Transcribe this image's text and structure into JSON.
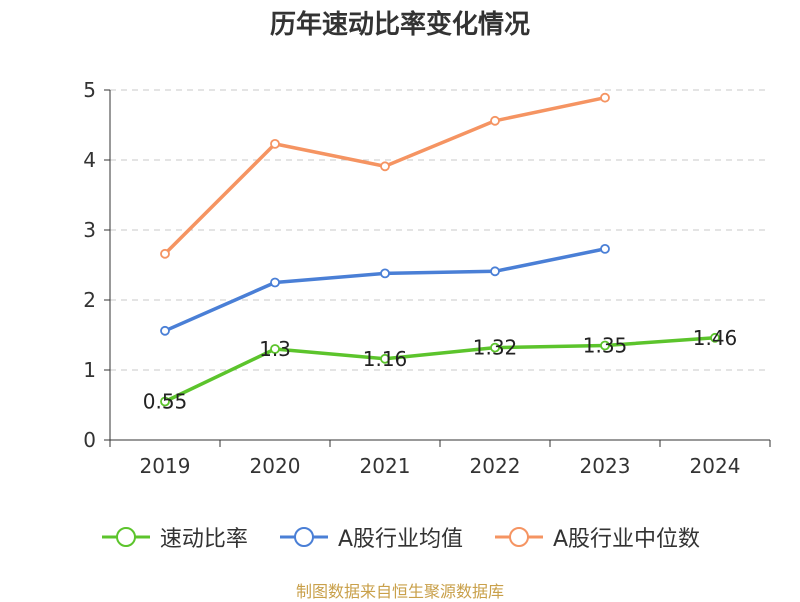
{
  "chart_data": {
    "type": "line",
    "title": "历年速动比率变化情况",
    "categories": [
      "2019",
      "2020",
      "2021",
      "2022",
      "2023",
      "2024"
    ],
    "ylim": [
      0,
      5
    ],
    "yticks": [
      "0",
      "1",
      "2",
      "3",
      "4",
      "5"
    ],
    "grid": "dashed-horizontal",
    "legend_position": "bottom",
    "series": [
      {
        "name": "速动比率",
        "color": "#5cc42c",
        "values": [
          0.55,
          1.3,
          1.16,
          1.32,
          1.35,
          1.46
        ],
        "labels": [
          "0.55",
          "1.3",
          "1.16",
          "1.32",
          "1.35",
          "1.46"
        ]
      },
      {
        "name": "A股行业均值",
        "color": "#4a7fd6",
        "values": [
          1.56,
          2.25,
          2.38,
          2.41,
          2.73,
          null
        ]
      },
      {
        "name": "A股行业中位数",
        "color": "#f59462",
        "values": [
          2.66,
          4.23,
          3.91,
          4.56,
          4.89,
          null
        ]
      }
    ]
  },
  "source": "制图数据来自恒生聚源数据库"
}
